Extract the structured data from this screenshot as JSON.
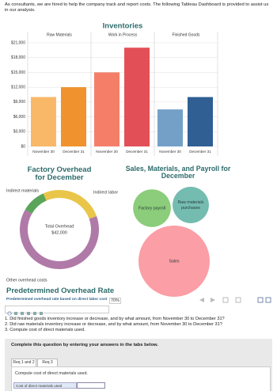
{
  "intro": "As consultants, we are hired to help the company track and report costs. The following Tableau Dashboard is provided to assist us in our analysis.",
  "chart_data": [
    {
      "type": "bar",
      "title": "Inventories",
      "categories": [
        "November 30",
        "December 31"
      ],
      "series": [
        {
          "name": "Raw Materials",
          "colors": [
            "#f9b868",
            "#f0922e"
          ],
          "values": [
            10000,
            12000
          ]
        },
        {
          "name": "Work in Process",
          "colors": [
            "#f57e68",
            "#e34f56"
          ],
          "values": [
            15000,
            20000
          ]
        },
        {
          "name": "Finished Goods",
          "colors": [
            "#74a0c8",
            "#2f5f93"
          ],
          "values": [
            7500,
            10000
          ]
        }
      ],
      "ylim": [
        0,
        21000
      ],
      "yticks": [
        {
          "value": 0,
          "label": "$0"
        },
        {
          "value": 3000,
          "label": "$3,000"
        },
        {
          "value": 6000,
          "label": "$6,000"
        },
        {
          "value": 9000,
          "label": "$9,000"
        },
        {
          "value": 12000,
          "label": "$12,000"
        },
        {
          "value": 15000,
          "label": "$15,000"
        },
        {
          "value": 18000,
          "label": "$18,000"
        },
        {
          "value": 21000,
          "label": "$21,000"
        }
      ],
      "grid": true
    },
    {
      "type": "donut",
      "title": "Factory Overhead for December",
      "categories": [
        "Indirect materials",
        "Indirect labor",
        "Other overhead costs"
      ],
      "values": [
        4200,
        11000,
        26800
      ],
      "colors": [
        "#5aa55a",
        "#e9c64a",
        "#b07aa8"
      ],
      "center_text": [
        "Total Overhead",
        "$42,000"
      ]
    },
    {
      "type": "bubble",
      "title": "Sales, Materials, and Payroll for December",
      "categories": [
        "Factory payroll",
        "Raw materials purchases",
        "Sales"
      ],
      "values": [
        28000,
        26000,
        100000
      ],
      "colors": [
        "#8bcd7a",
        "#75bcb0",
        "#fb9ea6"
      ]
    }
  ],
  "overhead_rate": {
    "title": "Predetermined Overhead Rate",
    "label": "Predetermined overhead rate based on direct labor cost",
    "value": "70%"
  },
  "questions": [
    "1. Did finished goods inventory increase or decrease, and by what amount, from November 30 to December 31?",
    "2. Did raw materials inventory increase or decrease, and by what amount, from November 30 to December 31?",
    "3. Compute cost of direct materials used."
  ],
  "instructions": "Complete this question by entering your answers in the tabs below.",
  "tabs": [
    "Req 1 and 2",
    "Req 3"
  ],
  "task": "Compute cost of direct materials used.",
  "answer_label": "Cost of direct materials used"
}
